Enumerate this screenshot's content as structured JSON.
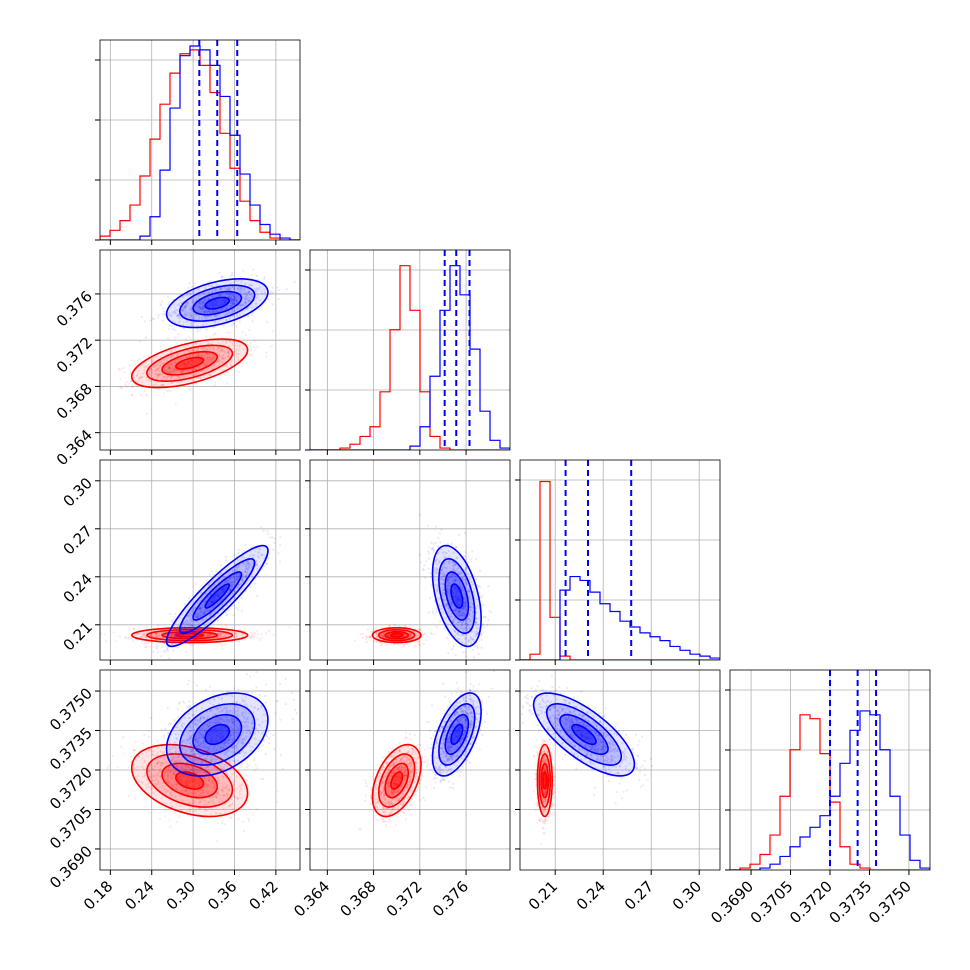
{
  "chart_data": {
    "type": "corner",
    "grid": true,
    "colors": {
      "series_a": "#ff0000",
      "series_b": "#0000ff"
    },
    "parameters": [
      {
        "range": [
          0.165,
          0.455
        ],
        "ticks": [
          0.18,
          0.24,
          0.3,
          0.36,
          0.42
        ],
        "tick_labels": [
          "0.18",
          "0.24",
          "0.30",
          "0.36",
          "0.42"
        ]
      },
      {
        "range": [
          0.3625,
          0.3798
        ],
        "ticks": [
          0.364,
          0.368,
          0.372,
          0.376
        ],
        "tick_labels": [
          "0.364",
          "0.368",
          "0.372",
          "0.376"
        ]
      },
      {
        "range": [
          0.188,
          0.313
        ],
        "ticks": [
          0.21,
          0.24,
          0.27,
          0.3
        ],
        "tick_labels": [
          "0.21",
          "0.24",
          "0.27",
          "0.30"
        ]
      },
      {
        "range": [
          0.3682,
          0.3758
        ],
        "ticks": [
          0.369,
          0.3705,
          0.372,
          0.3735,
          0.375
        ],
        "tick_labels": [
          "0.3690",
          "0.3705",
          "0.3720",
          "0.3735",
          "0.3750"
        ]
      }
    ],
    "series": [
      {
        "color": "#ff0000",
        "center": [
          0.295,
          0.37,
          0.2035,
          0.3716
        ],
        "sigma": [
          0.04,
          0.001,
          0.0022,
          0.00065
        ],
        "histograms": [
          [
            0.02,
            0.05,
            0.1,
            0.18,
            0.33,
            0.52,
            0.7,
            0.86,
            0.96,
            0.98,
            0.9,
            0.76,
            0.55,
            0.37,
            0.2,
            0.1,
            0.04,
            0.01,
            0,
            0
          ],
          [
            0,
            0,
            0,
            0.01,
            0.03,
            0.07,
            0.12,
            0.3,
            0.62,
            0.95,
            0.72,
            0.3,
            0.07,
            0.01,
            0,
            0,
            0,
            0,
            0,
            0
          ],
          [
            0,
            0.03,
            0.92,
            0.22,
            0.02,
            0,
            0,
            0,
            0,
            0,
            0,
            0,
            0,
            0,
            0,
            0,
            0,
            0,
            0,
            0
          ],
          [
            0,
            0.01,
            0.03,
            0.08,
            0.18,
            0.38,
            0.62,
            0.8,
            0.78,
            0.6,
            0.35,
            0.12,
            0.03,
            0.01,
            0,
            0,
            0,
            0,
            0,
            0
          ]
        ]
      },
      {
        "color": "#0000ff",
        "center": [
          0.335,
          0.3752,
          0.228,
          0.37335
        ],
        "sigma": [
          0.035,
          0.001,
          0.015,
          0.00075
        ],
        "quantiles": [
          [
            0.309,
            0.335,
            0.364
          ],
          [
            0.37415,
            0.37515,
            0.3763
          ],
          [
            0.2165,
            0.2305,
            0.2575
          ],
          [
            0.372,
            0.37305,
            0.37375
          ]
        ],
        "histograms": [
          [
            0,
            0,
            0,
            0,
            0.02,
            0.12,
            0.36,
            0.68,
            0.95,
            1.0,
            0.98,
            0.9,
            0.74,
            0.54,
            0.34,
            0.18,
            0.08,
            0.03,
            0.01,
            0
          ],
          [
            0,
            0,
            0,
            0,
            0,
            0,
            0,
            0,
            0,
            0,
            0.02,
            0.12,
            0.38,
            0.72,
            0.95,
            0.8,
            0.52,
            0.2,
            0.05,
            0.01
          ],
          [
            0,
            0,
            0,
            0,
            0.36,
            0.43,
            0.41,
            0.35,
            0.29,
            0.25,
            0.2,
            0.17,
            0.14,
            0.12,
            0.1,
            0.07,
            0.05,
            0.03,
            0.02,
            0.01
          ],
          [
            0,
            0,
            0,
            0.01,
            0.03,
            0.07,
            0.12,
            0.17,
            0.22,
            0.28,
            0.38,
            0.55,
            0.72,
            0.82,
            0.8,
            0.62,
            0.38,
            0.18,
            0.05,
            0.01
          ]
        ]
      }
    ]
  }
}
